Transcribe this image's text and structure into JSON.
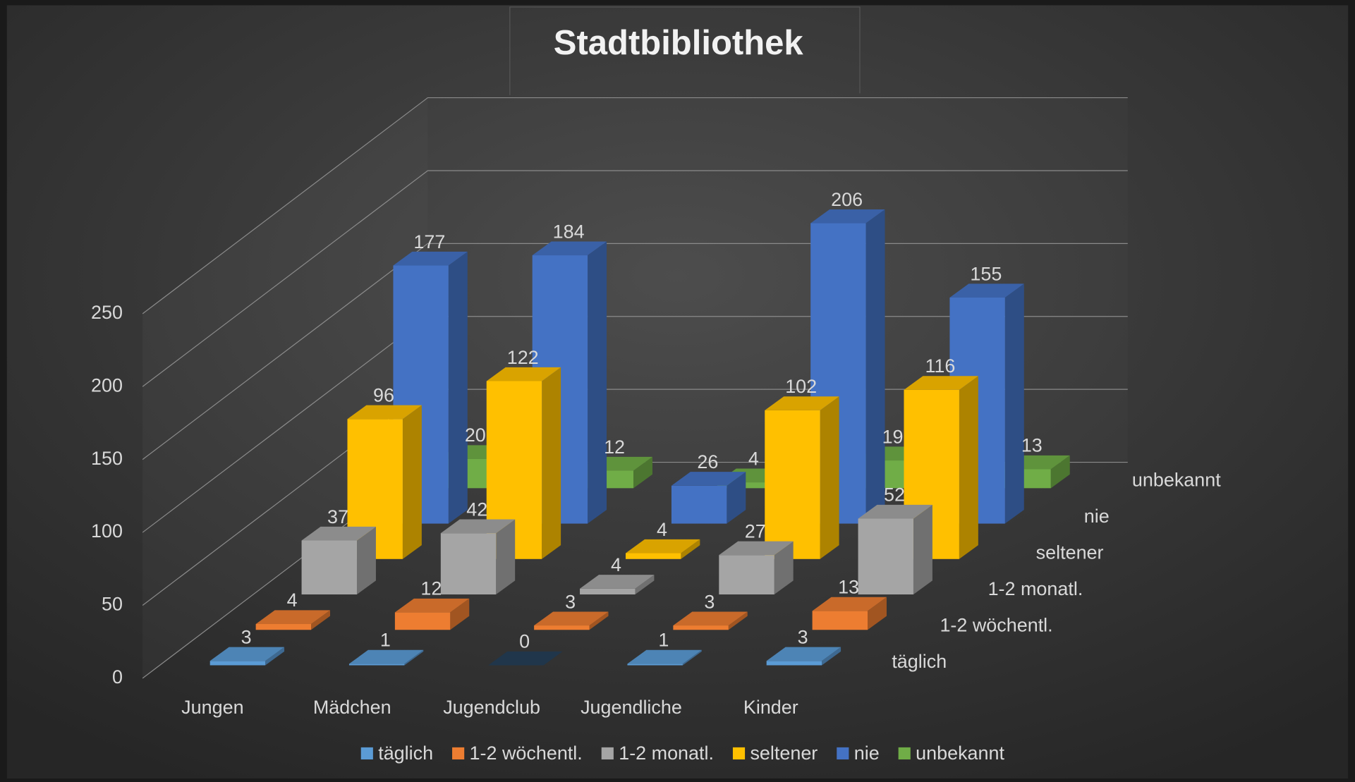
{
  "chart_data": {
    "type": "bar3d",
    "title": "Stadtbibliothek",
    "categories": [
      "Jungen",
      "Mädchen",
      "Jugendclub",
      "Jugendliche",
      "Kinder"
    ],
    "series": [
      {
        "name": "täglich",
        "color": "#5b9bd5",
        "values": [
          3,
          1,
          0,
          1,
          3
        ]
      },
      {
        "name": "1-2 wöchentl.",
        "color": "#ed7d31",
        "values": [
          4,
          12,
          3,
          3,
          13
        ]
      },
      {
        "name": "1-2 monatl.",
        "color": "#a5a5a5",
        "values": [
          37,
          42,
          4,
          27,
          52
        ]
      },
      {
        "name": "seltener",
        "color": "#ffc000",
        "values": [
          96,
          122,
          4,
          102,
          116
        ]
      },
      {
        "name": "nie",
        "color": "#4472c4",
        "values": [
          177,
          184,
          26,
          206,
          155
        ]
      },
      {
        "name": "unbekannt",
        "color": "#70ad47",
        "values": [
          20,
          12,
          4,
          19,
          13
        ]
      }
    ],
    "ylim": [
      0,
      250
    ],
    "yticks": [
      0,
      50,
      100,
      150,
      200,
      250
    ],
    "grid": true,
    "legend": "bottom"
  }
}
